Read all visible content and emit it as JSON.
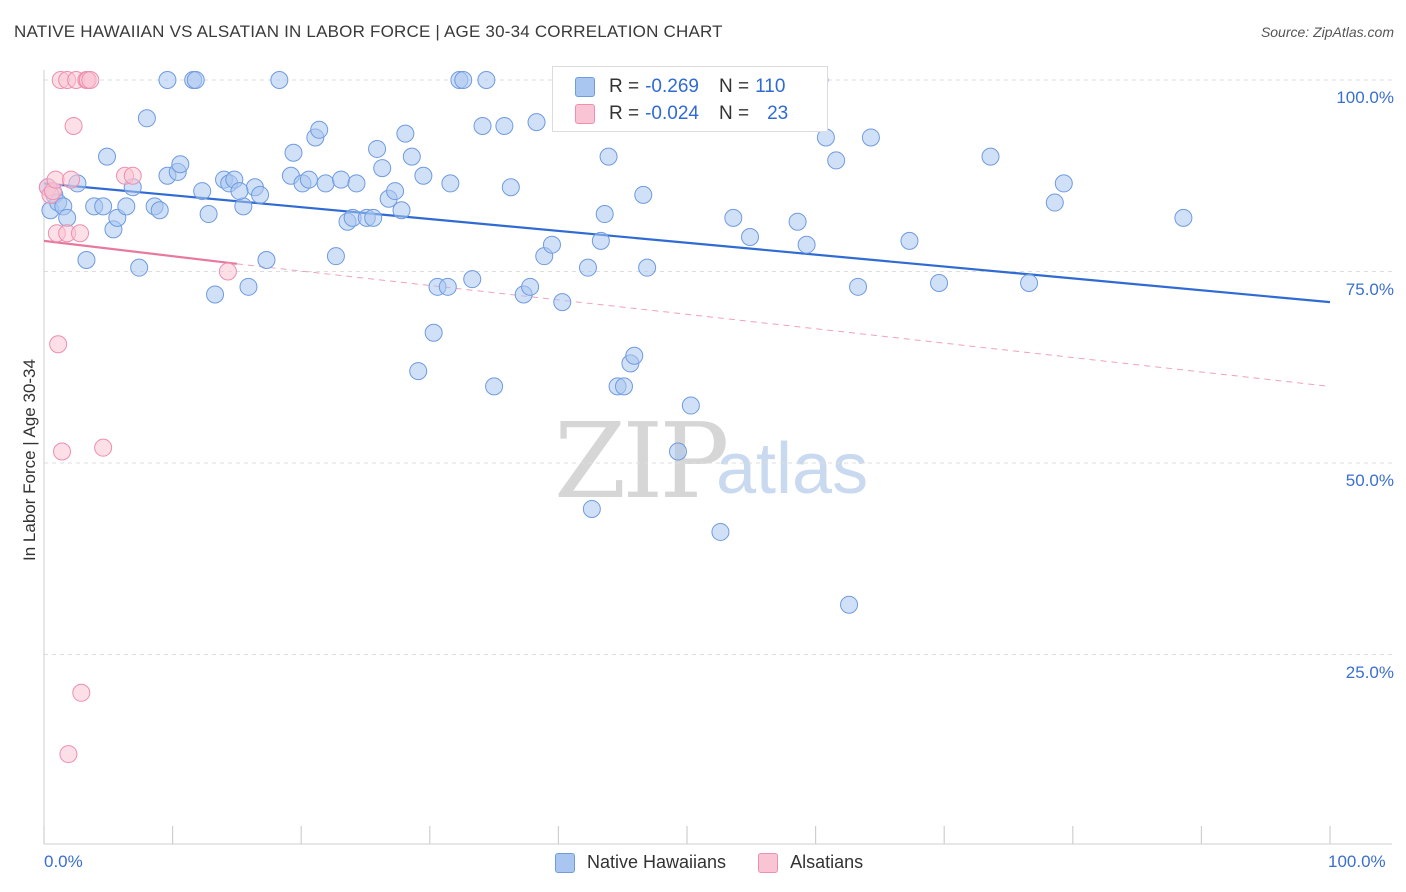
{
  "title": "NATIVE HAWAIIAN VS ALSATIAN IN LABOR FORCE | AGE 30-34 CORRELATION CHART",
  "source": "Source: ZipAtlas.com",
  "watermark": {
    "zip": "ZIP",
    "atlas": "atlas"
  },
  "legend": {
    "rows": [
      {
        "r_label": "R =",
        "r_value": "-0.269",
        "n_label": "N =",
        "n_value": "110",
        "color": "#a9c6f0",
        "border": "#6f9be0"
      },
      {
        "r_label": "R =",
        "r_value": "-0.024",
        "n_label": "N =",
        "n_value": "23",
        "color": "#f9c4d3",
        "border": "#ee8fae"
      }
    ]
  },
  "bottom_legend": [
    {
      "label": "Native Hawaiians",
      "color": "#a9c6f0",
      "border": "#6f9be0"
    },
    {
      "label": "Alsatians",
      "color": "#f9c4d3",
      "border": "#ee8fae"
    }
  ],
  "chart_data": {
    "type": "scatter",
    "title": "NATIVE HAWAIIAN VS ALSATIAN IN LABOR FORCE | AGE 30-34 CORRELATION CHART",
    "xlabel": "",
    "ylabel": "In Labor Force | Age 30-34",
    "xlim": [
      0,
      100
    ],
    "ylim": [
      0,
      105
    ],
    "x_tick_labels": [
      "0.0%",
      "100.0%"
    ],
    "y_ticks": [
      {
        "value": 100,
        "label": "100.0%"
      },
      {
        "value": 75,
        "label": "75.0%"
      },
      {
        "value": 50,
        "label": "50.0%"
      },
      {
        "value": 25,
        "label": "25.0%"
      }
    ],
    "series": [
      {
        "name": "Native Hawaiians",
        "color": "#6f9be0",
        "fill": "#a9c6f0",
        "trend": {
          "x0": 0,
          "y0": 86.5,
          "x1": 100,
          "y1": 71,
          "color": "#2f6bd3",
          "style": "solid"
        },
        "points": [
          [
            0.3,
            86
          ],
          [
            0.5,
            83
          ],
          [
            0.8,
            85
          ],
          [
            1.1,
            84
          ],
          [
            1.5,
            83.5
          ],
          [
            1.8,
            82
          ],
          [
            2.6,
            86.5
          ],
          [
            3.3,
            76.5
          ],
          [
            3.9,
            83.5
          ],
          [
            4.6,
            83.5
          ],
          [
            4.9,
            90
          ],
          [
            5.4,
            80.5
          ],
          [
            5.7,
            82
          ],
          [
            6.4,
            83.5
          ],
          [
            6.9,
            86
          ],
          [
            7.4,
            75.5
          ],
          [
            8.0,
            95
          ],
          [
            8.6,
            83.5
          ],
          [
            9.0,
            83
          ],
          [
            9.6,
            100
          ],
          [
            9.6,
            87.5
          ],
          [
            10.4,
            88
          ],
          [
            10.6,
            89
          ],
          [
            11.6,
            100
          ],
          [
            11.8,
            100
          ],
          [
            12.3,
            85.5
          ],
          [
            12.8,
            82.5
          ],
          [
            13.3,
            72
          ],
          [
            14.0,
            87
          ],
          [
            14.4,
            86.5
          ],
          [
            14.8,
            87
          ],
          [
            15.5,
            83.5
          ],
          [
            15.9,
            73
          ],
          [
            16.4,
            86
          ],
          [
            16.8,
            85
          ],
          [
            17.3,
            76.5
          ],
          [
            18.3,
            100
          ],
          [
            19.2,
            87.5
          ],
          [
            19.4,
            90.5
          ],
          [
            20.1,
            86.5
          ],
          [
            20.6,
            87
          ],
          [
            21.1,
            92.5
          ],
          [
            21.4,
            93.5
          ],
          [
            21.9,
            86.5
          ],
          [
            22.7,
            77
          ],
          [
            23.1,
            87
          ],
          [
            23.6,
            81.5
          ],
          [
            24.0,
            82
          ],
          [
            24.3,
            86.5
          ],
          [
            25.1,
            82
          ],
          [
            25.6,
            82
          ],
          [
            25.9,
            91
          ],
          [
            26.3,
            88.5
          ],
          [
            26.8,
            84.5
          ],
          [
            27.3,
            85.5
          ],
          [
            27.8,
            83
          ],
          [
            28.1,
            93
          ],
          [
            28.6,
            90
          ],
          [
            29.1,
            62
          ],
          [
            29.5,
            87.5
          ],
          [
            30.3,
            67
          ],
          [
            30.6,
            73
          ],
          [
            31.4,
            73
          ],
          [
            31.6,
            86.5
          ],
          [
            32.3,
            100
          ],
          [
            32.6,
            100
          ],
          [
            33.3,
            74
          ],
          [
            34.1,
            94
          ],
          [
            34.4,
            100
          ],
          [
            35.0,
            60
          ],
          [
            35.8,
            94
          ],
          [
            36.3,
            86
          ],
          [
            37.3,
            72
          ],
          [
            37.8,
            73
          ],
          [
            38.3,
            94.5
          ],
          [
            38.9,
            77
          ],
          [
            39.5,
            78.5
          ],
          [
            40.3,
            71
          ],
          [
            42.3,
            75.5
          ],
          [
            42.6,
            44
          ],
          [
            43.3,
            79
          ],
          [
            43.6,
            82.5
          ],
          [
            43.9,
            90
          ],
          [
            44.6,
            60
          ],
          [
            45.1,
            60
          ],
          [
            45.6,
            63
          ],
          [
            45.9,
            64
          ],
          [
            46.6,
            85
          ],
          [
            46.9,
            75.5
          ],
          [
            49.3,
            51.5
          ],
          [
            50.3,
            57.5
          ],
          [
            52.6,
            41
          ],
          [
            53.6,
            82
          ],
          [
            54.9,
            79.5
          ],
          [
            58.6,
            81.5
          ],
          [
            59.3,
            78.5
          ],
          [
            60.3,
            100
          ],
          [
            61.6,
            89.5
          ],
          [
            62.6,
            31.5
          ],
          [
            63.3,
            73
          ],
          [
            64.3,
            92.5
          ],
          [
            67.3,
            79
          ],
          [
            69.6,
            73.5
          ],
          [
            73.6,
            90
          ],
          [
            76.6,
            73.5
          ],
          [
            78.6,
            84
          ],
          [
            79.3,
            86.5
          ],
          [
            88.6,
            82
          ],
          [
            60.8,
            92.5
          ],
          [
            15.2,
            85.5
          ]
        ]
      },
      {
        "name": "Alsatians",
        "color": "#ee8fae",
        "fill": "#f9c4d3",
        "trend": {
          "x0": 0,
          "y0": 79,
          "x1": 15,
          "y1": 76,
          "color": "#e8799e",
          "style": "solid",
          "ext": {
            "x1": 100,
            "y1": 60
          }
        },
        "points": [
          [
            0.3,
            86
          ],
          [
            0.5,
            85
          ],
          [
            0.7,
            85.5
          ],
          [
            0.9,
            87
          ],
          [
            1.0,
            80
          ],
          [
            1.1,
            65.5
          ],
          [
            1.3,
            100
          ],
          [
            1.4,
            51.5
          ],
          [
            1.8,
            100
          ],
          [
            1.8,
            80
          ],
          [
            2.1,
            87
          ],
          [
            2.3,
            94
          ],
          [
            2.5,
            100
          ],
          [
            2.8,
            80
          ],
          [
            2.9,
            20
          ],
          [
            3.3,
            100
          ],
          [
            3.4,
            100
          ],
          [
            3.6,
            100
          ],
          [
            4.6,
            52
          ],
          [
            6.3,
            87.5
          ],
          [
            6.9,
            87.5
          ],
          [
            14.3,
            75
          ],
          [
            1.9,
            12
          ]
        ]
      }
    ]
  }
}
